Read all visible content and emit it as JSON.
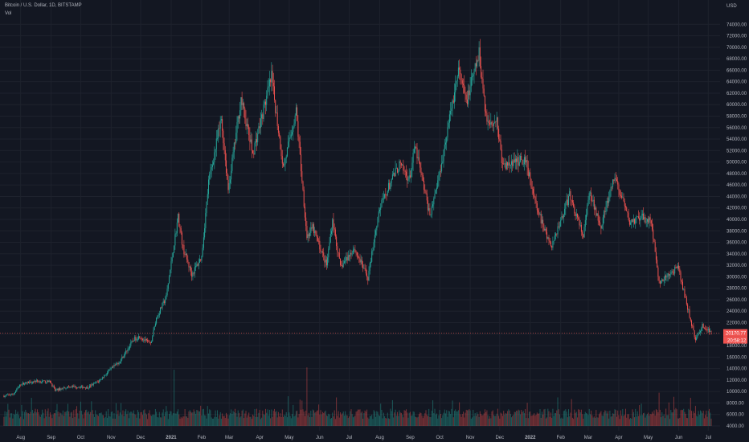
{
  "header": {
    "symbol_title": "Bitcoin / U.S. Dollar, 1D, BITSTAMP",
    "volume_label": "Vol",
    "currency": "USD"
  },
  "price_tags": {
    "last_price": "20170.77",
    "countdown": "20:58:12"
  },
  "colors": {
    "background": "#131722",
    "up": "#26a69a",
    "down": "#ef5350",
    "grid": "#1e222d",
    "text": "#b2b5be",
    "price_line": "#ef5350"
  },
  "chart_data": {
    "type": "candlestick",
    "title": "",
    "ylabel": "USD",
    "ylim": [
      4000,
      76000
    ],
    "y_ticks": [
      74000,
      72000,
      70000,
      68000,
      66000,
      64000,
      62000,
      60000,
      58000,
      56000,
      54000,
      52000,
      50000,
      48000,
      46000,
      44000,
      42000,
      40000,
      38000,
      36000,
      34000,
      32000,
      30000,
      28000,
      26000,
      24000,
      22000,
      20000,
      18000,
      16000,
      14000,
      12000,
      10000,
      8000,
      6000,
      4000
    ],
    "y_tick_labels": [
      "74000.00",
      "72000.00",
      "70000.00",
      "68000.00",
      "66000.00",
      "64000.00",
      "62000.00",
      "60000.00",
      "58000.00",
      "56000.00",
      "54000.00",
      "52000.00",
      "50000.00",
      "48000.00",
      "46000.00",
      "44000.00",
      "42000.00",
      "40000.00",
      "38000.00",
      "36000.00",
      "34000.00",
      "32000.00",
      "30000.00",
      "28000.00",
      "26000.00",
      "24000.00",
      "22000.00",
      "20000.00",
      "18000.00",
      "16000.00",
      "14000.00",
      "12000.00",
      "10000.00",
      "8000.00",
      "6000.00",
      "4000.00"
    ],
    "x_ticks": [
      {
        "label": "Aug",
        "bold": false
      },
      {
        "label": "Sep",
        "bold": false
      },
      {
        "label": "Oct",
        "bold": false
      },
      {
        "label": "Nov",
        "bold": false
      },
      {
        "label": "Dec",
        "bold": false
      },
      {
        "label": "2021",
        "bold": true
      },
      {
        "label": "Feb",
        "bold": false
      },
      {
        "label": "Mar",
        "bold": false
      },
      {
        "label": "Apr",
        "bold": false
      },
      {
        "label": "May",
        "bold": false
      },
      {
        "label": "Jun",
        "bold": false
      },
      {
        "label": "Jul",
        "bold": false
      },
      {
        "label": "Aug",
        "bold": false
      },
      {
        "label": "Sep",
        "bold": false
      },
      {
        "label": "Oct",
        "bold": false
      },
      {
        "label": "Nov",
        "bold": false
      },
      {
        "label": "Dec",
        "bold": false
      },
      {
        "label": "2022",
        "bold": true
      },
      {
        "label": "Feb",
        "bold": false
      },
      {
        "label": "Mar",
        "bold": false
      },
      {
        "label": "Apr",
        "bold": false
      },
      {
        "label": "May",
        "bold": false
      },
      {
        "label": "Jun",
        "bold": false
      },
      {
        "label": "Jul",
        "bold": false
      }
    ],
    "x_tick_months": [
      "2020-08",
      "2020-09",
      "2020-10",
      "2020-11",
      "2020-12",
      "2021-01",
      "2021-02",
      "2021-03",
      "2021-04",
      "2021-05",
      "2021-06",
      "2021-07",
      "2021-08",
      "2021-09",
      "2021-10",
      "2021-11",
      "2021-12",
      "2022-01",
      "2022-02",
      "2022-03",
      "2022-04",
      "2022-05",
      "2022-06",
      "2022-07"
    ],
    "last_price": 20170.77,
    "price_path": [
      [
        "2020-07-15",
        9200
      ],
      [
        "2020-07-25",
        9600
      ],
      [
        "2020-08-01",
        11300
      ],
      [
        "2020-08-15",
        11800
      ],
      [
        "2020-08-31",
        11700
      ],
      [
        "2020-09-05",
        10200
      ],
      [
        "2020-09-20",
        10900
      ],
      [
        "2020-10-08",
        10700
      ],
      [
        "2020-10-20",
        11900
      ],
      [
        "2020-10-31",
        13800
      ],
      [
        "2020-11-10",
        15300
      ],
      [
        "2020-11-24",
        19100
      ],
      [
        "2020-11-30",
        19600
      ],
      [
        "2020-12-11",
        18200
      ],
      [
        "2020-12-17",
        22800
      ],
      [
        "2020-12-27",
        26500
      ],
      [
        "2021-01-08",
        40500
      ],
      [
        "2021-01-13",
        35000
      ],
      [
        "2021-01-22",
        30400
      ],
      [
        "2021-02-01",
        33500
      ],
      [
        "2021-02-08",
        46500
      ],
      [
        "2021-02-21",
        57500
      ],
      [
        "2021-02-28",
        45200
      ],
      [
        "2021-03-13",
        61000
      ],
      [
        "2021-03-25",
        51500
      ],
      [
        "2021-04-13",
        64800
      ],
      [
        "2021-04-25",
        49000
      ],
      [
        "2021-05-08",
        58900
      ],
      [
        "2021-05-19",
        37000
      ],
      [
        "2021-05-25",
        38500
      ],
      [
        "2021-06-08",
        32000
      ],
      [
        "2021-06-14",
        40000
      ],
      [
        "2021-06-22",
        31600
      ],
      [
        "2021-07-06",
        35000
      ],
      [
        "2021-07-20",
        29800
      ],
      [
        "2021-07-31",
        41500
      ],
      [
        "2021-08-14",
        47200
      ],
      [
        "2021-08-21",
        49500
      ],
      [
        "2021-08-31",
        47000
      ],
      [
        "2021-09-06",
        52700
      ],
      [
        "2021-09-21",
        40700
      ],
      [
        "2021-10-01",
        48200
      ],
      [
        "2021-10-20",
        66000
      ],
      [
        "2021-10-28",
        60500
      ],
      [
        "2021-11-10",
        68800
      ],
      [
        "2021-11-18",
        56900
      ],
      [
        "2021-11-28",
        57300
      ],
      [
        "2021-12-04",
        49200
      ],
      [
        "2021-12-27",
        50600
      ],
      [
        "2022-01-08",
        41800
      ],
      [
        "2022-01-22",
        35000
      ],
      [
        "2022-02-10",
        44200
      ],
      [
        "2022-02-24",
        37000
      ],
      [
        "2022-03-02",
        44500
      ],
      [
        "2022-03-14",
        39000
      ],
      [
        "2022-03-28",
        47400
      ],
      [
        "2022-04-12",
        39500
      ],
      [
        "2022-04-25",
        40300
      ],
      [
        "2022-05-04",
        39700
      ],
      [
        "2022-05-12",
        28800
      ],
      [
        "2022-05-31",
        31700
      ],
      [
        "2022-06-13",
        22500
      ],
      [
        "2022-06-18",
        19000
      ],
      [
        "2022-06-25",
        21500
      ],
      [
        "2022-07-04",
        20170
      ]
    ],
    "volume_peaks": [
      [
        "2021-01-04",
        13800
      ],
      [
        "2021-05-19",
        14200
      ],
      [
        "2022-05-12",
        9800
      ],
      [
        "2022-06-13",
        8900
      ]
    ]
  }
}
